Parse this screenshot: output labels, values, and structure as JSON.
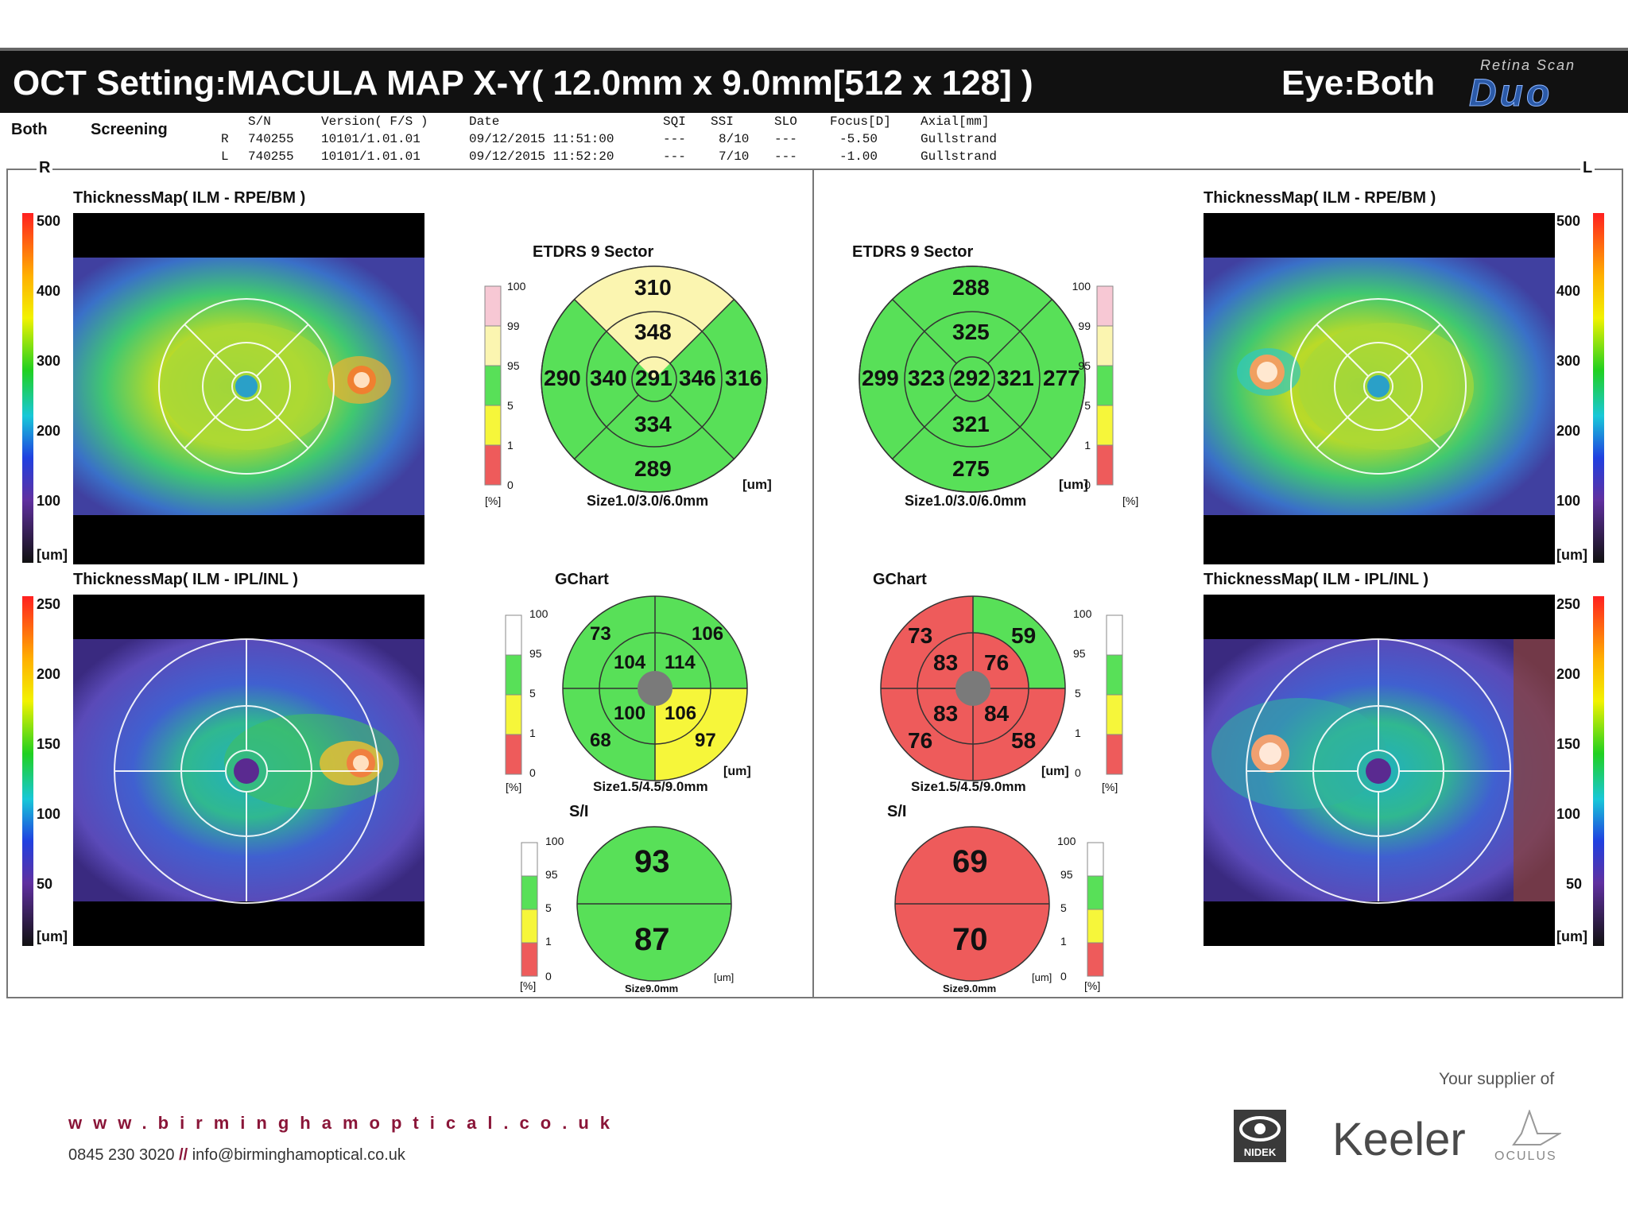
{
  "title": "OCT Setting:MACULA MAP X-Y( 12.0mm x 9.0mm[512 x 128] )",
  "eye_label": "Eye:Both",
  "logo": {
    "sub": "Retina Scan",
    "main": "Duo"
  },
  "header": {
    "mode": "Both",
    "type": "Screening",
    "cols": [
      "S/N",
      "Version( F/S )",
      "Date",
      "SQI",
      "SSI",
      "SLO",
      "Focus[D]",
      "Axial[mm]"
    ],
    "rows": [
      {
        "eye": "R",
        "sn": "740255",
        "version": "10101/1.01.01",
        "date": "09/12/2015 11:51:00",
        "sqi": "---",
        "ssi": "8/10",
        "slo": "---",
        "focus": "-5.50",
        "axial": "Gullstrand"
      },
      {
        "eye": "L",
        "sn": "740255",
        "version": "10101/1.01.01",
        "date": "09/12/2015 11:52:20",
        "sqi": "---",
        "ssi": "7/10",
        "slo": "---",
        "focus": "-1.00",
        "axial": "Gullstrand"
      }
    ],
    "side_r": "R",
    "side_l": "L"
  },
  "maps": {
    "top_label": "ThicknessMap( ILM - RPE/BM )",
    "bottom_label": "ThicknessMap( ILM - IPL/INL )",
    "top_scale": [
      "500",
      "400",
      "300",
      "200",
      "100"
    ],
    "bottom_scale": [
      "250",
      "200",
      "150",
      "100",
      "50"
    ],
    "unit": "[um]"
  },
  "etdrs": {
    "title": "ETDRS 9 Sector",
    "size": "Size1.0/3.0/6.0mm",
    "unit": "[um]",
    "pct": "[%]",
    "scale": [
      "100",
      "99",
      "95",
      "5",
      "1",
      "0"
    ],
    "right": {
      "s_out": "310",
      "s_in": "348",
      "n_out": "290",
      "n_in": "340",
      "c": "291",
      "t_in": "346",
      "t_out": "316",
      "i_in": "334",
      "i_out": "289"
    },
    "left": {
      "s_out": "288",
      "s_in": "325",
      "n_out": "299",
      "n_in": "323",
      "c": "292",
      "t_in": "321",
      "t_out": "277",
      "i_in": "321",
      "i_out": "275"
    },
    "colors": {
      "green": "#58e058",
      "yellow": "#fbf5b0",
      "red": "#f0a0a0",
      "pink": "#f7c8d4"
    }
  },
  "gchart": {
    "title": "GChart",
    "size": "Size1.5/4.5/9.0mm",
    "unit": "[um]",
    "pct": "[%]",
    "scale": [
      "100",
      "95",
      "5",
      "1",
      "0"
    ],
    "right": {
      "tl": "73",
      "tr": "106",
      "itl": "104",
      "itr": "114",
      "ibl": "100",
      "ibr": "106",
      "bl": "68",
      "br": "97"
    },
    "left": {
      "tl": "73",
      "tr": "59",
      "itl": "83",
      "itr": "76",
      "ibl": "83",
      "ibr": "84",
      "bl": "76",
      "br": "58"
    },
    "colors": {
      "green": "#58e058",
      "yellow": "#f6f63a",
      "red": "#ee5b5b",
      "grey": "#777777"
    }
  },
  "si": {
    "title": "S/I",
    "size": "Size9.0mm",
    "unit": "[um]",
    "pct": "[%]",
    "scale": [
      "100",
      "95",
      "5",
      "1",
      "0"
    ],
    "right": {
      "s": "93",
      "i": "87"
    },
    "left": {
      "s": "69",
      "i": "70"
    }
  },
  "footer": {
    "url": "www.birminghamoptical.co.uk",
    "phone": "0845 230 3020",
    "sep": "//",
    "email": "info@birminghamoptical.co.uk",
    "supplier": "Your supplier of",
    "brands": [
      "NIDEK",
      "Keeler",
      "OCULUS"
    ]
  }
}
